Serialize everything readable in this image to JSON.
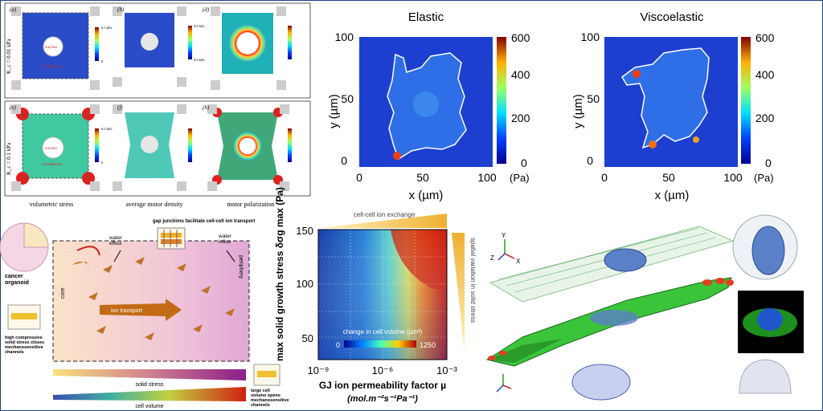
{
  "colors": {
    "accent": "#1f3f7a",
    "field_blue": "#1f3fd0",
    "heat_red": "#b0001a"
  },
  "panel_a": {
    "labels": [
      "(a)",
      "(b)",
      "(d)",
      "(e)",
      "(f)",
      "(h)"
    ],
    "row1_ylabel": "K_c = 0.01 kPa",
    "row2_ylabel": "K_c = 0.1 kPa",
    "inner_nucleus": "nucleus",
    "inner_cytoskeleton": "cytoskeleton",
    "scale_ticks": [
      "0.3 kPa",
      "0",
      "0.8 kPa",
      "0.6 kPa",
      "0.3 kPa",
      "0"
    ],
    "captions": [
      "volumetric stress",
      "average motor density",
      "motor polarization"
    ]
  },
  "heatmaps": {
    "elastic": {
      "title": "Elastic",
      "xlabel": "x (µm)",
      "ylabel": "y (µm)",
      "xticks": [
        "0",
        "50",
        "100"
      ],
      "yticks": [
        "0",
        "50",
        "100"
      ],
      "cbar_ticks": [
        "600",
        "400",
        "200",
        "0"
      ],
      "cbar_unit": "(Pa)"
    },
    "viscoelastic": {
      "title": "Viscoelastic",
      "xlabel": "x (µm)",
      "ylabel": "y (µm)",
      "xticks": [
        "0",
        "50",
        "100"
      ],
      "yticks": [
        "0",
        "50",
        "100"
      ],
      "cbar_ticks": [
        "600",
        "400",
        "200",
        "0"
      ],
      "cbar_unit": "(Pa)"
    }
  },
  "organoid": {
    "title_top": "gap junctions facilitate cell-cell ion transport",
    "cancer_organoid": "cancer\norganoid",
    "water_efflux": "water\nefflux",
    "water_influx": "water\ninflux",
    "core": "core",
    "periphery": "periphery",
    "ion_transport": "ion transport",
    "left_note": "high compressive\nsolid stress closes\nmechanosensitive\nchannels",
    "right_note": "large cell\nvolume opens\nmechanosensitive\nchannels",
    "solid_stress": "solid stress",
    "cell_volume": "cell volume"
  },
  "gj_chart": {
    "top_label": "cell-cell ion exchange",
    "right_label": "spatial variation in solid stress",
    "ylabel": "max solid growth stress δσg max (Pa)",
    "xlabel": "GJ ion permeability factor µ",
    "xlabel_units": "(mol.m⁻²s⁻¹Pa⁻¹)",
    "yticks": [
      "150",
      "100",
      "50"
    ],
    "xticks": [
      "10⁻⁹",
      "10⁻⁶",
      "10⁻³"
    ],
    "cbar_title": "change in cell volume (µm³)",
    "cbar_min": "0",
    "cbar_max": "1250"
  },
  "render3d": {
    "axes": {
      "y": "Y",
      "z": "Z",
      "x": "X"
    }
  }
}
